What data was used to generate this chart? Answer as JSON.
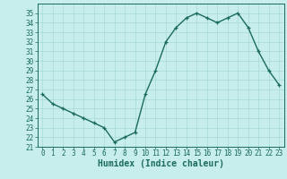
{
  "x": [
    0,
    1,
    2,
    3,
    4,
    5,
    6,
    7,
    8,
    9,
    10,
    11,
    12,
    13,
    14,
    15,
    16,
    17,
    18,
    19,
    20,
    21,
    22,
    23
  ],
  "y": [
    26.5,
    25.5,
    25.0,
    24.5,
    24.0,
    23.5,
    23.0,
    21.5,
    22.0,
    22.5,
    26.5,
    29.0,
    32.0,
    33.5,
    34.5,
    35.0,
    34.5,
    34.0,
    34.5,
    35.0,
    33.5,
    31.0,
    29.0,
    27.5
  ],
  "line_color": "#1a6b5a",
  "marker": "+",
  "marker_size": 3,
  "bg_color": "#c8eded",
  "grid_color": "#a8d8d8",
  "xlabel": "Humidex (Indice chaleur)",
  "ylabel": "",
  "ylim": [
    21,
    36
  ],
  "xlim": [
    -0.5,
    23.5
  ],
  "yticks": [
    21,
    22,
    23,
    24,
    25,
    26,
    27,
    28,
    29,
    30,
    31,
    32,
    33,
    34,
    35
  ],
  "xticks": [
    0,
    1,
    2,
    3,
    4,
    5,
    6,
    7,
    8,
    9,
    10,
    11,
    12,
    13,
    14,
    15,
    16,
    17,
    18,
    19,
    20,
    21,
    22,
    23
  ],
  "tick_color": "#1a6b5a",
  "label_color": "#1a6b5a",
  "spine_color": "#1a6b5a",
  "xlabel_fontsize": 7,
  "tick_fontsize": 5.5,
  "linewidth": 1.0
}
